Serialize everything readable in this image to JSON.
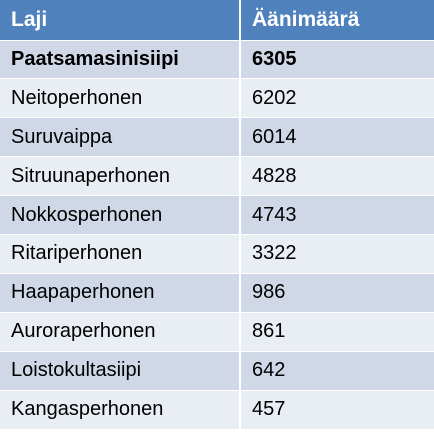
{
  "table": {
    "headers": [
      "Laji",
      "Äänimäärä"
    ],
    "rows": [
      [
        "Paatsamasinisiipi",
        "6305"
      ],
      [
        "Neitoperhonen",
        "6202"
      ],
      [
        "Suruvaippa",
        "6014"
      ],
      [
        "Sitruunaperhonen",
        "4828"
      ],
      [
        "Nokkosperhonen",
        "4743"
      ],
      [
        "Ritariperhonen",
        "3322"
      ],
      [
        "Haapaperhonen",
        "986"
      ],
      [
        "Auroraperhonen",
        "861"
      ],
      [
        "Loistokultasiipi",
        "642"
      ],
      [
        "Kangasperhonen",
        "457"
      ]
    ]
  },
  "colors": {
    "header_bg": "#4f81bd",
    "header_text": "#ffffff",
    "row_odd": "#d0d8e8",
    "row_even": "#e9edf4"
  }
}
